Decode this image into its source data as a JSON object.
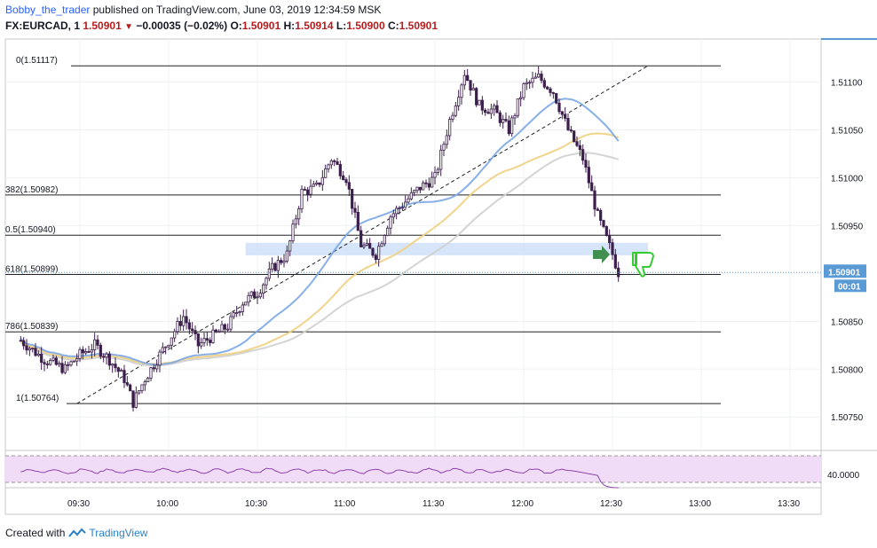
{
  "header": {
    "author": "Bobby_the_trader",
    "published": " published on TradingView.com, June 03, 2019 12:34:59 MSK",
    "symbol": "FX:EURCAD, 1",
    "last": "1.50901",
    "change": "−0.00035 (−0.02%)",
    "o_label": "O:",
    "o": "1.50901",
    "h_label": "H:",
    "h": "1.50914",
    "l_label": "L:",
    "l": "1.50900",
    "c_label": "C:",
    "c": "1.50901"
  },
  "footer": {
    "created_with": "Created with",
    "brand": "TradingView"
  },
  "colors": {
    "up_candle": "#ffffff",
    "down_candle": "#3d1f4d",
    "sma_blue": "#7aa6e6",
    "sma_gold": "#f0cf80",
    "sma_gray": "#cfcfcf",
    "zone": "#cfe0f8",
    "rsi_fill": "#f0dcf7",
    "rsi_line": "#8e44ad",
    "price_label_bg": "#5b9bd5",
    "arrow_green": "#3f8f4f",
    "thumb_green": "#33cc33"
  },
  "icons": [
    "right-arrow-icon",
    "thumbs-down-icon",
    "tradingview-logo-icon"
  ],
  "chart_data": {
    "type": "candlestick",
    "time_labels": [
      "09:30",
      "10:00",
      "10:30",
      "11:00",
      "11:30",
      "12:00",
      "12:30",
      "13:00",
      "13:30"
    ],
    "price_ticks": [
      "1.51100",
      "1.51050",
      "1.51000",
      "1.50950",
      "1.50850",
      "1.50800",
      "1.50750"
    ],
    "ylim": [
      1.50715,
      1.51145
    ],
    "current_price": "1.50901",
    "countdown": "00:01",
    "fib_levels": [
      {
        "label": "0(1.51117)",
        "value": 1.51117
      },
      {
        "label": "382(1.50982)",
        "value": 1.50982
      },
      {
        "label": "0.5(1.50940)",
        "value": 1.5094
      },
      {
        "label": "618(1.50899)",
        "value": 1.50899
      },
      {
        "label": "786(1.50839)",
        "value": 1.50839
      },
      {
        "label": "1(1.50764)",
        "value": 1.50764
      }
    ],
    "trendline": {
      "from": {
        "time": "09:29",
        "price": 1.50764
      },
      "to": {
        "time": "12:42",
        "price": 1.51117
      }
    },
    "zone": {
      "from_time": "10:26",
      "to_time": "12:42",
      "low": 1.50919,
      "high": 1.50932
    },
    "rsi": {
      "level_label": "40.0000",
      "upper": 60,
      "lower": 40
    },
    "candle_keypoints": [
      [
        "09:10",
        1.5083
      ],
      [
        "09:18",
        1.5081
      ],
      [
        "09:25",
        1.508
      ],
      [
        "09:30",
        1.50815
      ],
      [
        "09:35",
        1.50825
      ],
      [
        "09:40",
        1.5081
      ],
      [
        "09:45",
        1.5079
      ],
      [
        "09:48",
        1.50765
      ],
      [
        "09:52",
        1.5079
      ],
      [
        "09:56",
        1.5081
      ],
      [
        "10:00",
        1.5083
      ],
      [
        "10:05",
        1.50855
      ],
      [
        "10:10",
        1.50825
      ],
      [
        "10:15",
        1.50835
      ],
      [
        "10:20",
        1.50845
      ],
      [
        "10:25",
        1.5087
      ],
      [
        "10:30",
        1.5088
      ],
      [
        "10:35",
        1.50905
      ],
      [
        "10:40",
        1.5092
      ],
      [
        "10:45",
        1.50985
      ],
      [
        "10:50",
        1.5099
      ],
      [
        "10:55",
        1.5102
      ],
      [
        "11:00",
        1.51
      ],
      [
        "11:05",
        1.5093
      ],
      [
        "11:10",
        1.5092
      ],
      [
        "11:15",
        1.5096
      ],
      [
        "11:20",
        1.50975
      ],
      [
        "11:25",
        1.5099
      ],
      [
        "11:30",
        1.51
      ],
      [
        "11:35",
        1.5106
      ],
      [
        "11:40",
        1.5111
      ],
      [
        "11:45",
        1.51075
      ],
      [
        "11:50",
        1.5107
      ],
      [
        "11:55",
        1.5105
      ],
      [
        "12:00",
        1.51095
      ],
      [
        "12:05",
        1.51105
      ],
      [
        "12:10",
        1.5109
      ],
      [
        "12:15",
        1.5105
      ],
      [
        "12:20",
        1.5102
      ],
      [
        "12:25",
        1.5096
      ],
      [
        "12:30",
        1.5092
      ],
      [
        "12:32",
        1.50901
      ]
    ]
  }
}
